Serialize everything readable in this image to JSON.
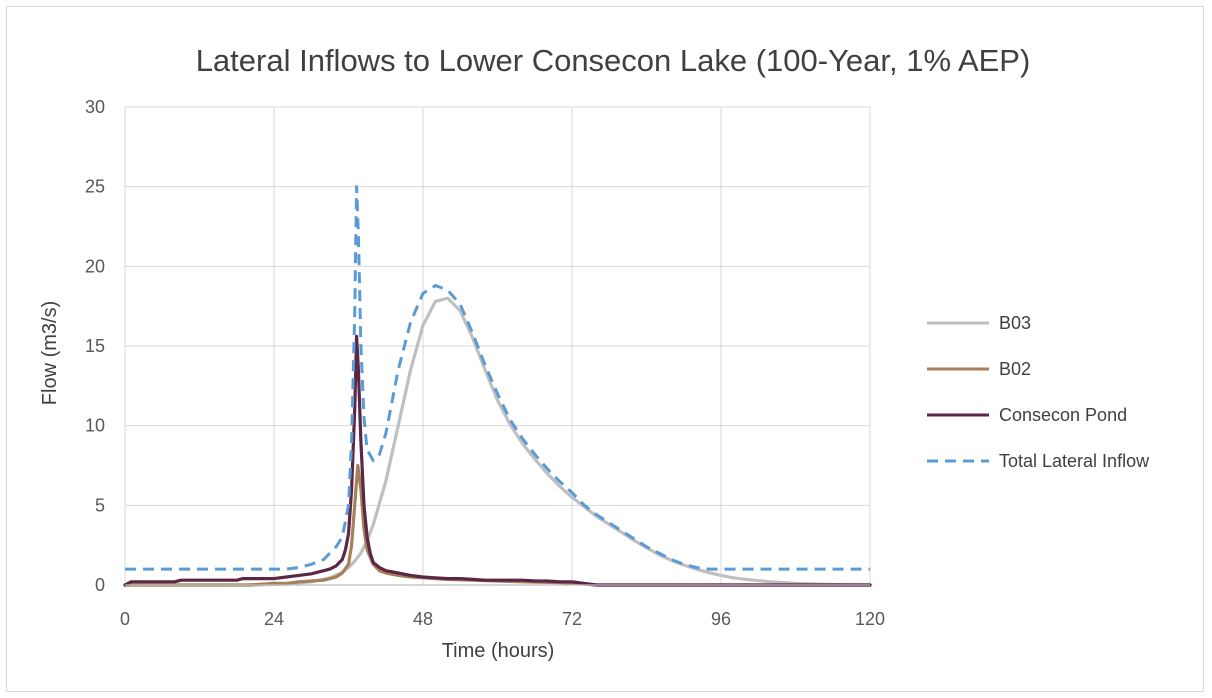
{
  "chart_data": {
    "type": "line",
    "title": "Lateral Inflows to Lower Consecon Lake (100-Year, 1% AEP)",
    "xlabel": "Time (hours)",
    "ylabel": "Flow (m3/s)",
    "xlim": [
      0,
      120
    ],
    "ylim": [
      0,
      30
    ],
    "xticks": [
      0,
      24,
      48,
      72,
      96,
      120
    ],
    "yticks": [
      0,
      5,
      10,
      15,
      20,
      25,
      30
    ],
    "grid": true,
    "legend_position": "right",
    "series": [
      {
        "name": "B03",
        "color": "#bfbfbf",
        "dash": "solid",
        "x": [
          0,
          10,
          20,
          26,
          30,
          33,
          35,
          36,
          37,
          38,
          39,
          40,
          42,
          44,
          46,
          48,
          50,
          52,
          54,
          56,
          58,
          60,
          62,
          64,
          66,
          68,
          70,
          72,
          74,
          76,
          78,
          80,
          82,
          84,
          86,
          88,
          90,
          92,
          94,
          96,
          98,
          100,
          104,
          108,
          112,
          116,
          120
        ],
        "y": [
          0,
          0,
          0,
          0.05,
          0.2,
          0.45,
          0.8,
          1.1,
          1.5,
          2.0,
          2.8,
          3.8,
          6.5,
          10.0,
          13.5,
          16.3,
          17.8,
          18.0,
          17.2,
          15.5,
          13.5,
          11.6,
          10.1,
          8.9,
          7.9,
          7.0,
          6.2,
          5.5,
          4.9,
          4.3,
          3.8,
          3.3,
          2.8,
          2.35,
          1.9,
          1.55,
          1.25,
          1.0,
          0.78,
          0.6,
          0.45,
          0.35,
          0.2,
          0.1,
          0.05,
          0.02,
          0.0
        ]
      },
      {
        "name": "B02",
        "color": "#a5805a",
        "dash": "solid",
        "x": [
          0,
          5,
          10,
          15,
          20,
          24,
          26,
          28,
          30,
          32,
          33,
          34,
          35,
          36,
          36.5,
          37,
          37.5,
          38,
          38.5,
          39,
          40,
          41,
          42,
          44,
          46,
          48,
          50,
          52,
          56,
          60,
          64,
          70,
          72,
          74,
          76,
          80,
          90,
          100,
          110,
          120
        ],
        "y": [
          0,
          0,
          0,
          0,
          0,
          0.1,
          0.1,
          0.2,
          0.25,
          0.3,
          0.4,
          0.5,
          0.75,
          1.3,
          2.5,
          5.0,
          7.5,
          6.0,
          3.5,
          2.2,
          1.3,
          0.9,
          0.75,
          0.6,
          0.5,
          0.45,
          0.4,
          0.35,
          0.3,
          0.25,
          0.2,
          0.15,
          0.12,
          0.05,
          0.0,
          0.0,
          0.0,
          0.0,
          0.0,
          0.0
        ]
      },
      {
        "name": "Consecon Pond",
        "color": "#5b2746",
        "dash": "solid",
        "x": [
          0,
          1,
          2,
          5,
          8,
          9,
          12,
          15,
          18,
          19,
          21,
          24,
          26,
          28,
          30,
          32,
          33,
          34,
          35,
          35.5,
          36,
          36.5,
          37,
          37.3,
          37.6,
          38,
          38.5,
          39,
          39.5,
          40,
          41,
          42,
          44,
          46,
          48,
          50,
          52,
          54,
          56,
          58,
          60,
          62,
          64,
          66,
          68,
          70,
          72,
          74,
          76,
          80,
          90,
          100,
          110,
          120
        ],
        "y": [
          0,
          0.2,
          0.2,
          0.2,
          0.2,
          0.3,
          0.3,
          0.3,
          0.3,
          0.4,
          0.4,
          0.4,
          0.5,
          0.6,
          0.7,
          0.9,
          1.0,
          1.2,
          1.6,
          2.2,
          3.2,
          6.0,
          11.0,
          15.6,
          13.5,
          9.0,
          5.0,
          3.0,
          2.0,
          1.4,
          1.1,
          0.9,
          0.75,
          0.6,
          0.5,
          0.45,
          0.4,
          0.4,
          0.35,
          0.3,
          0.3,
          0.3,
          0.3,
          0.25,
          0.25,
          0.2,
          0.2,
          0.1,
          0.0,
          0.0,
          0.0,
          0.0,
          0.0,
          0.0
        ]
      },
      {
        "name": "Total Lateral Inflow",
        "color": "#5b9bd5",
        "dash": "dashed",
        "x": [
          0,
          10,
          20,
          26,
          28,
          30,
          32,
          33,
          34,
          35,
          36,
          36.5,
          37,
          37.3,
          37.6,
          38,
          38.5,
          39,
          40,
          41,
          42,
          43,
          44,
          46,
          48,
          50,
          52,
          54,
          56,
          58,
          60,
          62,
          64,
          66,
          68,
          70,
          72,
          74,
          76,
          78,
          80,
          82,
          84,
          86,
          88,
          90,
          92,
          94,
          96,
          100,
          110,
          120
        ],
        "y": [
          1.0,
          1.0,
          1.0,
          1.0,
          1.1,
          1.3,
          1.6,
          2.0,
          2.4,
          3.0,
          5.0,
          9.0,
          17.0,
          25.0,
          22.0,
          15.0,
          10.5,
          8.5,
          7.8,
          8.2,
          9.5,
          11.5,
          13.5,
          16.5,
          18.3,
          18.8,
          18.5,
          17.6,
          15.8,
          13.8,
          12.0,
          10.4,
          9.2,
          8.2,
          7.3,
          6.5,
          5.8,
          5.0,
          4.4,
          3.9,
          3.4,
          2.9,
          2.4,
          2.0,
          1.6,
          1.3,
          1.1,
          1.0,
          1.0,
          1.0,
          1.0,
          1.0
        ]
      }
    ]
  }
}
